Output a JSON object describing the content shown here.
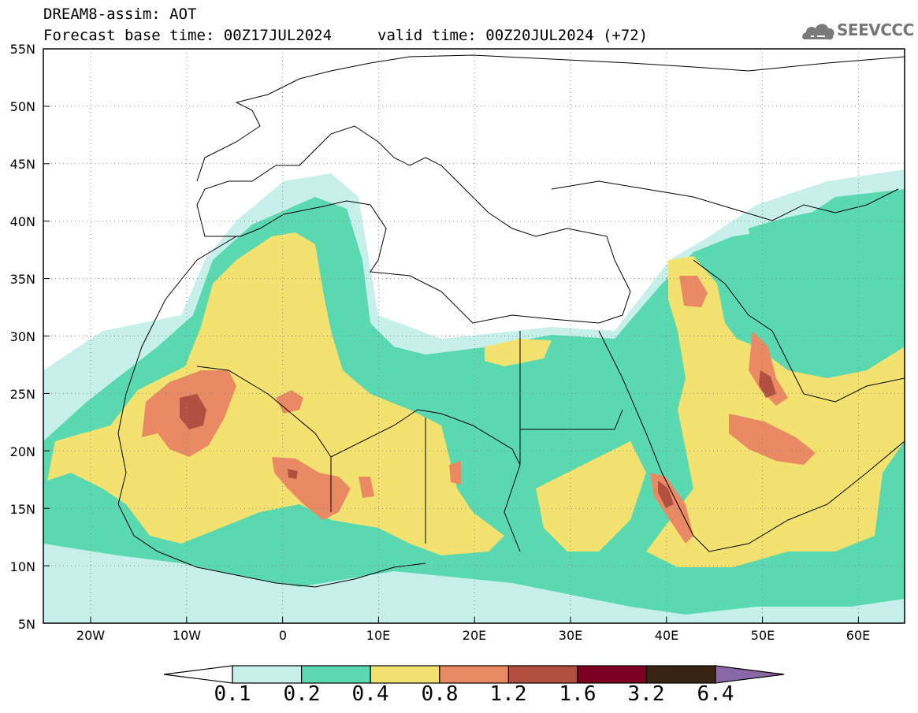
{
  "header": {
    "title_line1": "DREAM8-assim: AOT",
    "title_line2": "Forecast base time: 00Z17JUL2024",
    "valid_time": "valid time: 00Z20JUL2024 (+72)",
    "logo": "SEEVCCC"
  },
  "map": {
    "lat_labels": [
      "55N",
      "50N",
      "45N",
      "40N",
      "35N",
      "30N",
      "25N",
      "20N",
      "15N",
      "10N",
      "5N"
    ],
    "lon_labels": [
      "20W",
      "10W",
      "0",
      "10E",
      "20E",
      "30E",
      "40E",
      "50E",
      "60E"
    ],
    "variable": "AOT"
  },
  "colorbar": {
    "labels": [
      "0.1",
      "0.2",
      "0.4",
      "0.8",
      "1.2",
      "1.6",
      "3.2",
      "6.4"
    ],
    "colors": [
      "#c8f0ea",
      "#5ad8b0",
      "#f3e270",
      "#e98a64",
      "#b24f40",
      "#7d0024",
      "#3a2312",
      "#8a68a8"
    ]
  },
  "colors": {
    "land_fill": "#ffffff",
    "level1": "#c8f0ea",
    "level2": "#5ad8b0",
    "level3": "#f3e270",
    "level4": "#e98a64",
    "level5": "#b24f40"
  }
}
